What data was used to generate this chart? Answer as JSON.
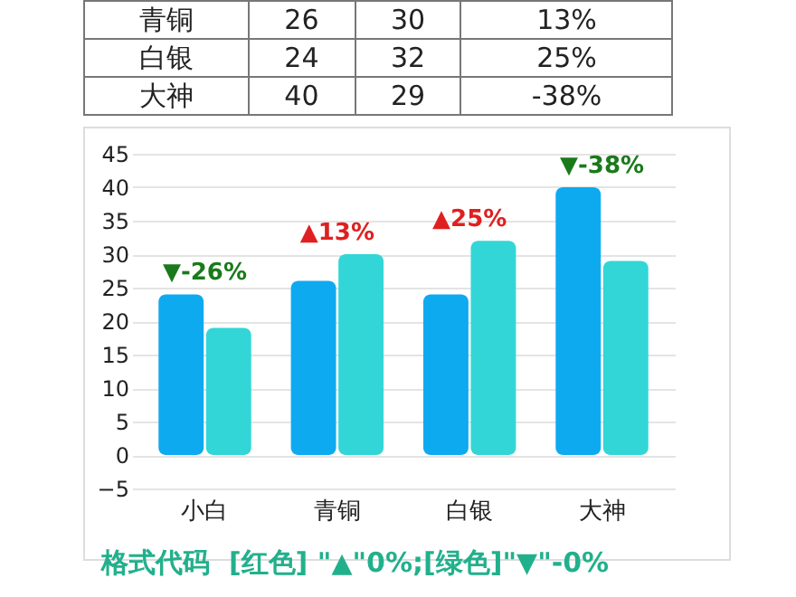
{
  "chart_data": [
    {
      "type": "other",
      "annotations": [
        "青铜",
        "26",
        "30",
        "13%",
        "白银",
        "24",
        "32",
        "25%",
        "大神",
        "40",
        "29",
        "-38%"
      ]
    },
    {
      "type": "bar",
      "categories": [
        "小白",
        "青铜",
        "白银",
        "大神"
      ],
      "series": [
        {
          "color": "#0eaaf0",
          "values": [
            24,
            26,
            24,
            40
          ]
        },
        {
          "color": "#33d6d6",
          "values": [
            19,
            30,
            32,
            29
          ]
        }
      ],
      "ylim": [
        -5,
        45
      ],
      "yticks": [
        -5,
        0,
        5,
        10,
        15,
        20,
        25,
        30,
        35,
        40,
        45
      ],
      "grid": "y",
      "annotations": [
        "▼-26%",
        "▲13%",
        "▲25%",
        "▼-38%",
        "格式代码  [红色] \"▲\"0%;[绿色]\"▼\"-0%"
      ]
    }
  ]
}
